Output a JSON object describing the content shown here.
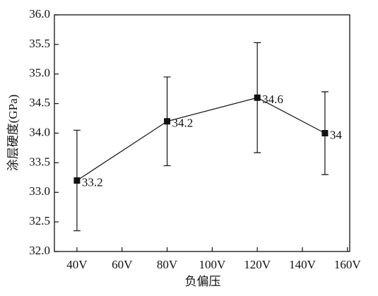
{
  "chart_data": {
    "type": "line",
    "x_label": "负偏压",
    "y_label": "涂层硬度(GPa)",
    "x": [
      40,
      80,
      120,
      150
    ],
    "values": [
      33.2,
      34.2,
      34.6,
      34
    ],
    "errors": [
      0.85,
      0.75,
      0.93,
      0.7
    ],
    "color": "#111111",
    "xlim": [
      30,
      161
    ],
    "xticks": [
      {
        "value": 40,
        "label": "40V"
      },
      {
        "value": 60,
        "label": "60V"
      },
      {
        "value": 80,
        "label": "80V"
      },
      {
        "value": 100,
        "label": "100V"
      },
      {
        "value": 120,
        "label": "120V"
      },
      {
        "value": 140,
        "label": "140V"
      },
      {
        "value": 160,
        "label": "160V"
      }
    ],
    "ylim": [
      32,
      36
    ],
    "yticks": [
      {
        "value": 32,
        "label": "32.0"
      },
      {
        "value": 32.5,
        "label": "32.5"
      },
      {
        "value": 33,
        "label": "33.0"
      },
      {
        "value": 33.5,
        "label": "33.5"
      },
      {
        "value": 34,
        "label": "34.0"
      },
      {
        "value": 34.5,
        "label": "34.5"
      },
      {
        "value": 35,
        "label": "35.0"
      },
      {
        "value": 35.5,
        "label": "35.5"
      },
      {
        "value": 36,
        "label": "36.0"
      }
    ]
  }
}
